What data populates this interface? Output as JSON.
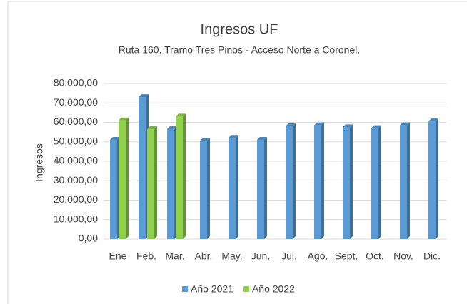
{
  "chart_data": {
    "type": "bar",
    "title": "Ingresos UF",
    "subtitle": "Ruta 160, Tramo Tres Pinos - Acceso Norte a Coronel.",
    "y_label": "Ingresos",
    "categories": [
      "Ene",
      "Feb.",
      "Mar.",
      "Abr.",
      "May.",
      "Jun.",
      "Jul.",
      "Ago.",
      "Sept.",
      "Oct.",
      "Nov.",
      "Dic."
    ],
    "series": [
      {
        "name": "Año 2021",
        "color": "#5b9bd5",
        "values": [
          51000,
          73000,
          56500,
          50500,
          52000,
          51000,
          58000,
          58500,
          57500,
          57000,
          58500,
          60500
        ]
      },
      {
        "name": "Año 2022",
        "color": "#92d050",
        "values": [
          61000,
          56500,
          63000,
          null,
          null,
          null,
          null,
          null,
          null,
          null,
          null,
          null
        ]
      }
    ],
    "ylim": [
      0,
      80000
    ],
    "yticks": [
      {
        "value": 0,
        "label": "0,00"
      },
      {
        "value": 10000,
        "label": "10.000,00"
      },
      {
        "value": 20000,
        "label": "20.000,00"
      },
      {
        "value": 30000,
        "label": "30.000,00"
      },
      {
        "value": 40000,
        "label": "40.000,00"
      },
      {
        "value": 50000,
        "label": "50.000,00"
      },
      {
        "value": 60000,
        "label": "60.000,00"
      },
      {
        "value": 70000,
        "label": "70.000,00"
      },
      {
        "value": 80000,
        "label": "80.000,00"
      }
    ],
    "grid": true,
    "legend": "bottom"
  }
}
